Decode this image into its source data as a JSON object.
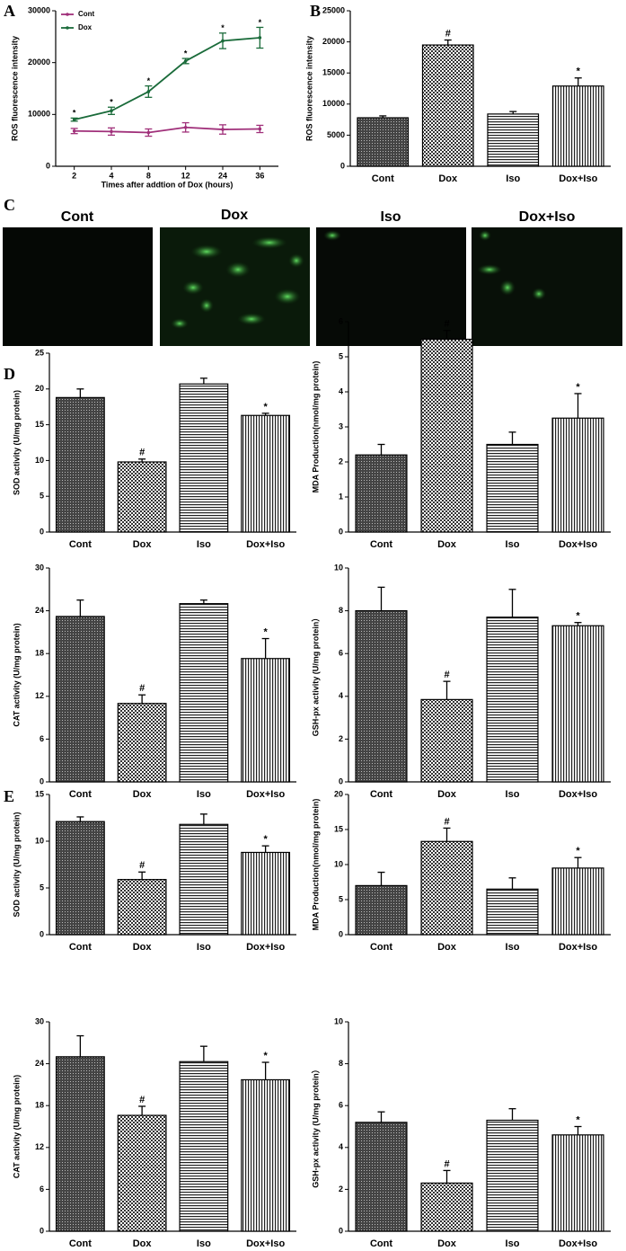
{
  "chart_data": [
    {
      "type": "line",
      "panel": "A",
      "ylabel": "ROS fluorescence intensity",
      "xlabel": "Times after addtion of Dox (hours)",
      "categories": [
        "2",
        "4",
        "8",
        "12",
        "24",
        "36"
      ],
      "ylim": [
        0,
        30000
      ],
      "yticks": [
        0,
        10000,
        20000,
        30000
      ],
      "legend": "upper left",
      "series": [
        {
          "name": "Cont",
          "color": "#a0307a",
          "values": [
            6800,
            6700,
            6500,
            7500,
            7100,
            7200
          ],
          "errors": [
            500,
            700,
            700,
            900,
            900,
            700
          ]
        },
        {
          "name": "Dox",
          "color": "#1a6b3a",
          "values": [
            9000,
            10700,
            14400,
            20300,
            24200,
            24800
          ],
          "errors": [
            300,
            700,
            1100,
            500,
            1500,
            2000
          ],
          "annotations": [
            "*",
            "*",
            "*",
            "*",
            "*",
            "*"
          ]
        }
      ]
    },
    {
      "type": "bar",
      "panel": "B",
      "ylabel": "ROS fluorescence intensity",
      "categories": [
        "Cont",
        "Dox",
        "Iso",
        "Dox+Iso"
      ],
      "values": [
        7800,
        19500,
        8400,
        12900
      ],
      "errors": [
        300,
        800,
        400,
        1300
      ],
      "annotations": [
        null,
        "#",
        null,
        "*"
      ],
      "ylim": [
        0,
        25000
      ],
      "yticks": [
        0,
        5000,
        10000,
        15000,
        20000,
        25000
      ]
    },
    {
      "type": "bar",
      "panel": "D",
      "ylabel": "SOD activity (U/mg protein)",
      "categories": [
        "Cont",
        "Dox",
        "Iso",
        "Dox+Iso"
      ],
      "values": [
        18.8,
        9.8,
        20.7,
        16.3
      ],
      "errors": [
        1.2,
        0.4,
        0.8,
        0.3
      ],
      "annotations": [
        null,
        "#",
        null,
        "*"
      ],
      "ylim": [
        0,
        25
      ],
      "yticks": [
        0,
        5,
        10,
        15,
        20,
        25
      ]
    },
    {
      "type": "bar",
      "ylabel": "MDA Production(nmol/mg protein)",
      "categories": [
        "Cont",
        "Dox",
        "Iso",
        "Dox+Iso"
      ],
      "values": [
        2.2,
        5.5,
        2.5,
        3.25
      ],
      "errors": [
        0.3,
        0.25,
        0.35,
        0.7
      ],
      "annotations": [
        null,
        "#",
        null,
        "*"
      ],
      "ylim": [
        0,
        6
      ],
      "yticks": [
        0,
        1,
        2,
        3,
        4,
        5,
        6
      ]
    },
    {
      "type": "bar",
      "ylabel": "CAT activity (U/mg protein)",
      "categories": [
        "Cont",
        "Dox",
        "Iso",
        "Dox+Iso"
      ],
      "values": [
        23.2,
        11,
        25,
        17.3
      ],
      "errors": [
        2.3,
        1.2,
        0.5,
        2.8
      ],
      "annotations": [
        null,
        "#",
        null,
        "*"
      ],
      "ylim": [
        0,
        30
      ],
      "yticks": [
        0,
        6,
        12,
        18,
        24,
        30
      ]
    },
    {
      "type": "bar",
      "ylabel": "GSH-px activity (U/mg protein）",
      "categories": [
        "Cont",
        "Dox",
        "Iso",
        "Dox+Iso"
      ],
      "values": [
        8,
        3.85,
        7.7,
        7.3
      ],
      "errors": [
        1.1,
        0.85,
        1.3,
        0.15
      ],
      "annotations": [
        null,
        "#",
        null,
        "*"
      ],
      "ylim": [
        0,
        10
      ],
      "yticks": [
        0,
        2,
        4,
        6,
        8,
        10
      ]
    },
    {
      "type": "bar",
      "panel": "E",
      "ylabel": "SOD activity (U/mg protein)",
      "categories": [
        "Cont",
        "Dox",
        "Iso",
        "Dox+Iso"
      ],
      "values": [
        12.1,
        5.9,
        11.8,
        8.8
      ],
      "errors": [
        0.5,
        0.8,
        1.1,
        0.7
      ],
      "annotations": [
        null,
        "#",
        null,
        "*"
      ],
      "ylim": [
        0,
        15
      ],
      "yticks": [
        0,
        5,
        10,
        15
      ]
    },
    {
      "type": "bar",
      "ylabel": "MDA Production(nmol/mg protein)",
      "categories": [
        "Cont",
        "Dox",
        "Iso",
        "Dox+Iso"
      ],
      "values": [
        7,
        13.3,
        6.5,
        9.5
      ],
      "errors": [
        1.9,
        1.9,
        1.6,
        1.5
      ],
      "annotations": [
        null,
        "#",
        null,
        "*"
      ],
      "ylim": [
        0,
        20
      ],
      "yticks": [
        0,
        5,
        10,
        15,
        20
      ]
    },
    {
      "type": "bar",
      "ylabel": "CAT activity (U/mg protein)",
      "categories": [
        "Cont",
        "Dox",
        "Iso",
        "Dox+Iso"
      ],
      "values": [
        25,
        16.6,
        24.3,
        21.7
      ],
      "errors": [
        3,
        1.3,
        2.2,
        2.5
      ],
      "annotations": [
        null,
        "#",
        null,
        "*"
      ],
      "ylim": [
        0,
        30
      ],
      "yticks": [
        0,
        6,
        12,
        18,
        24,
        30
      ]
    },
    {
      "type": "bar",
      "ylabel": "GSH-px activity (U/mg protein）",
      "categories": [
        "Cont",
        "Dox",
        "Iso",
        "Dox+Iso"
      ],
      "values": [
        5.2,
        2.3,
        5.3,
        4.6
      ],
      "errors": [
        0.5,
        0.6,
        0.55,
        0.4
      ],
      "annotations": [
        null,
        "#",
        null,
        "*"
      ],
      "ylim": [
        0,
        10
      ],
      "yticks": [
        0,
        2,
        4,
        6,
        8,
        10
      ]
    }
  ],
  "images": {
    "panel": "C",
    "labels": [
      "Cont",
      "Dox",
      "Iso",
      "Dox+Iso"
    ]
  }
}
